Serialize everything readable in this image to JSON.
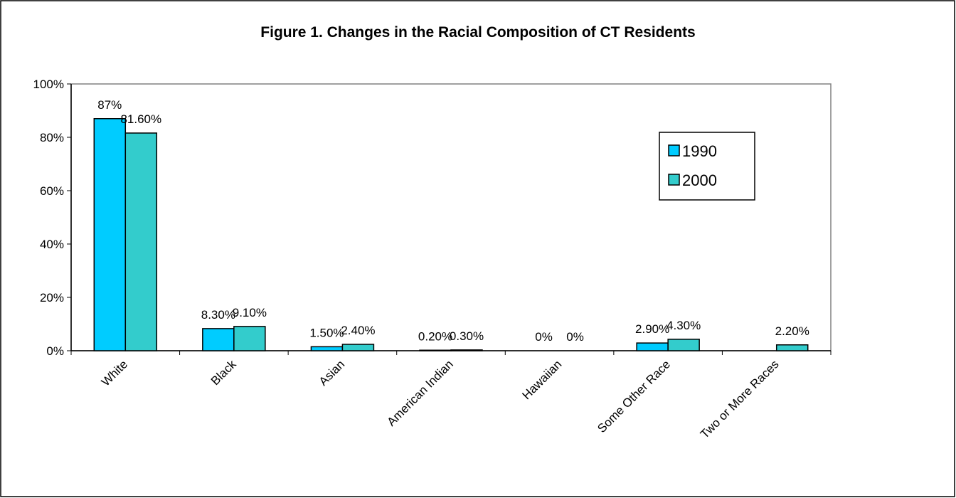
{
  "chart_data": {
    "type": "bar",
    "title": "Figure 1.  Changes in the Racial Composition of CT Residents",
    "categories": [
      "White",
      "Black",
      "Asian",
      "American Indian",
      "Hawaiian",
      "Some Other Race",
      "Two or More Races"
    ],
    "series": [
      {
        "name": "1990",
        "color": "#00ccff",
        "values": [
          87,
          8.3,
          1.5,
          0.2,
          0,
          2.9,
          null
        ],
        "labels": [
          "87%",
          "8.30%",
          "1.50%",
          "0.20%",
          "0%",
          "2.90%",
          ""
        ]
      },
      {
        "name": "2000",
        "color": "#33cccc",
        "values": [
          81.6,
          9.1,
          2.4,
          0.3,
          0,
          4.3,
          2.2
        ],
        "labels": [
          "81.60%",
          "9.10%",
          "2.40%",
          "0.30%",
          "0%",
          "4.30%",
          "2.20%"
        ]
      }
    ],
    "ylim": [
      0,
      100
    ],
    "yticks": [
      0,
      20,
      40,
      60,
      80,
      100
    ],
    "ytick_labels": [
      "0%",
      "20%",
      "40%",
      "60%",
      "80%",
      "100%"
    ],
    "grid": false,
    "legend_position": "right"
  }
}
